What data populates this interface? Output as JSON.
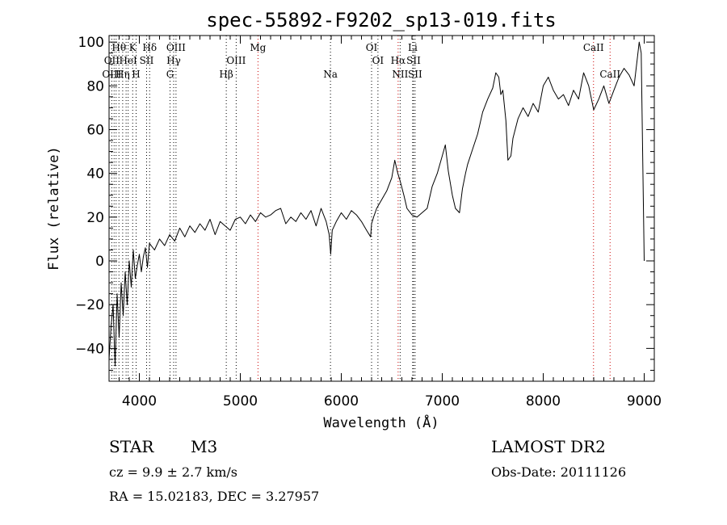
{
  "chart_data": {
    "type": "line",
    "title": "spec-55892-F9202_sp13-019.fits",
    "xlabel": "Wavelength (Å)",
    "ylabel": "Flux (relative)",
    "xlim": [
      3700,
      9100
    ],
    "ylim": [
      -55,
      103
    ],
    "xticks": [
      4000,
      5000,
      6000,
      7000,
      8000,
      9000
    ],
    "yticks": [
      -40,
      -20,
      0,
      20,
      40,
      60,
      80,
      100
    ],
    "grid": false,
    "series": [
      {
        "x": [
          3700,
          3720,
          3740,
          3760,
          3780,
          3800,
          3820,
          3840,
          3860,
          3880,
          3900,
          3920,
          3940,
          3960,
          3980,
          4000,
          4020,
          4040,
          4060,
          4080,
          4100,
          4150,
          4200,
          4250,
          4300,
          4350,
          4400,
          4450,
          4500,
          4550,
          4600,
          4650,
          4700,
          4750,
          4800,
          4850,
          4900,
          4950,
          5000,
          5050,
          5100,
          5150,
          5200,
          5250,
          5300,
          5350,
          5400,
          5450,
          5500,
          5550,
          5600,
          5650,
          5700,
          5750,
          5800,
          5850,
          5880,
          5895,
          5910,
          5950,
          6000,
          6050,
          6100,
          6150,
          6200,
          6250,
          6290,
          6300,
          6320,
          6350,
          6400,
          6450,
          6500,
          6530,
          6560,
          6580,
          6620,
          6650,
          6700,
          6750,
          6800,
          6850,
          6900,
          6950,
          7000,
          7030,
          7060,
          7100,
          7130,
          7170,
          7200,
          7230,
          7250,
          7300,
          7350,
          7400,
          7450,
          7500,
          7530,
          7560,
          7580,
          7600,
          7630,
          7650,
          7680,
          7700,
          7750,
          7800,
          7850,
          7900,
          7950,
          8000,
          8050,
          8100,
          8150,
          8200,
          8250,
          8300,
          8350,
          8400,
          8450,
          8500,
          8550,
          8600,
          8650,
          8700,
          8750,
          8800,
          8850,
          8900,
          8930,
          8950,
          8970,
          9000
        ],
        "y": [
          -45,
          -30,
          -20,
          -48,
          -15,
          -35,
          -10,
          -25,
          -5,
          -20,
          0,
          -12,
          5,
          -8,
          -2,
          3,
          -5,
          2,
          6,
          -3,
          8,
          5,
          10,
          7,
          12,
          9,
          15,
          11,
          16,
          13,
          17,
          14,
          19,
          12,
          18,
          16,
          14,
          19,
          20,
          17,
          21,
          18,
          22,
          20,
          21,
          23,
          24,
          17,
          20,
          18,
          22,
          19,
          23,
          16,
          24,
          18,
          12,
          3,
          14,
          18,
          22,
          19,
          23,
          21,
          18,
          14,
          11,
          17,
          20,
          24,
          28,
          32,
          38,
          46,
          40,
          37,
          30,
          24,
          21,
          20,
          22,
          24,
          34,
          40,
          48,
          53,
          41,
          30,
          24,
          22,
          33,
          40,
          44,
          51,
          58,
          68,
          74,
          79,
          86,
          84,
          76,
          78,
          64,
          46,
          48,
          56,
          65,
          70,
          66,
          72,
          68,
          80,
          84,
          78,
          74,
          76,
          71,
          78,
          74,
          86,
          80,
          69,
          74,
          80,
          72,
          78,
          84,
          88,
          85,
          80,
          92,
          100,
          95,
          0
        ]
      }
    ],
    "line_labels_top": [
      {
        "text": "Hθ",
        "x": 3798,
        "row": 0
      },
      {
        "text": "K",
        "x": 3934,
        "row": 0
      },
      {
        "text": "Hδ",
        "x": 4102,
        "row": 0
      },
      {
        "text": "OIII",
        "x": 4363,
        "row": 0
      },
      {
        "text": "Mg",
        "x": 5175,
        "row": 0
      },
      {
        "text": "OI",
        "x": 6300,
        "row": 0
      },
      {
        "text": "Li",
        "x": 6707,
        "row": 0
      },
      {
        "text": "CaII",
        "x": 8498,
        "row": 0
      },
      {
        "text": "OII",
        "x": 3727,
        "row": 1
      },
      {
        "text": "HeI",
        "x": 3889,
        "row": 1
      },
      {
        "text": "SII",
        "x": 4072,
        "row": 1
      },
      {
        "text": "Hγ",
        "x": 4340,
        "row": 1
      },
      {
        "text": "OIII",
        "x": 4959,
        "row": 1
      },
      {
        "text": "OI",
        "x": 6363,
        "row": 1
      },
      {
        "text": "Hα",
        "x": 6563,
        "row": 1
      },
      {
        "text": "SII",
        "x": 6716,
        "row": 1
      },
      {
        "text": "OIII",
        "x": 3727,
        "row": 2
      },
      {
        "text": "Hη",
        "x": 3835,
        "row": 2
      },
      {
        "text": "H",
        "x": 3968,
        "row": 2
      },
      {
        "text": "G",
        "x": 4304,
        "row": 2
      },
      {
        "text": "Hβ",
        "x": 4861,
        "row": 2
      },
      {
        "text": "Na",
        "x": 5893,
        "row": 2
      },
      {
        "text": "NII",
        "x": 6583,
        "row": 2
      },
      {
        "text": "SII",
        "x": 6731,
        "row": 2
      },
      {
        "text": "CaII",
        "x": 8662,
        "row": 2
      }
    ],
    "line_markers": [
      {
        "x": 3727,
        "color": "#000000"
      },
      {
        "x": 3750,
        "color": "#000000"
      },
      {
        "x": 3770,
        "color": "#000000"
      },
      {
        "x": 3798,
        "color": "#000000"
      },
      {
        "x": 3835,
        "color": "#000000"
      },
      {
        "x": 3869,
        "color": "#000000"
      },
      {
        "x": 3889,
        "color": "#000000"
      },
      {
        "x": 3934,
        "color": "#000000"
      },
      {
        "x": 3968,
        "color": "#000000"
      },
      {
        "x": 4072,
        "color": "#000000"
      },
      {
        "x": 4102,
        "color": "#000000"
      },
      {
        "x": 4304,
        "color": "#000000"
      },
      {
        "x": 4340,
        "color": "#000000"
      },
      {
        "x": 4363,
        "color": "#000000"
      },
      {
        "x": 4861,
        "color": "#000000"
      },
      {
        "x": 4959,
        "color": "#000000"
      },
      {
        "x": 5175,
        "color": "#cc0000"
      },
      {
        "x": 5893,
        "color": "#000000"
      },
      {
        "x": 6300,
        "color": "#000000"
      },
      {
        "x": 6363,
        "color": "#000000"
      },
      {
        "x": 6563,
        "color": "#cc0000"
      },
      {
        "x": 6583,
        "color": "#000000"
      },
      {
        "x": 6707,
        "color": "#000000"
      },
      {
        "x": 6716,
        "color": "#000000"
      },
      {
        "x": 6731,
        "color": "#000000"
      },
      {
        "x": 8498,
        "color": "#cc0000"
      },
      {
        "x": 8662,
        "color": "#cc0000"
      }
    ]
  },
  "info": {
    "object_class": "STAR",
    "subclass": "M3",
    "survey": "LAMOST DR2",
    "cz": "cz = 9.9 ± 2.7 km/s",
    "obs_date": "Obs-Date: 20111126",
    "coords": "RA =   15.02183, DEC =    3.27957"
  }
}
